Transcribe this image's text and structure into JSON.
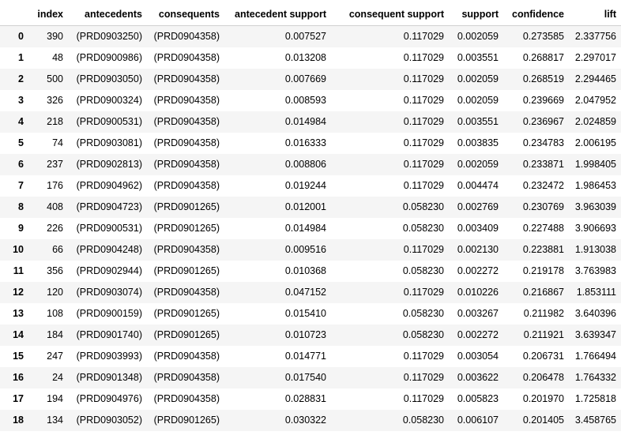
{
  "table": {
    "columns": [
      "",
      "index",
      "antecedents",
      "consequents",
      "antecedent support",
      "consequent support",
      "support",
      "confidence",
      "lift"
    ],
    "rows": [
      [
        "0",
        "390",
        "(PRD0903250)",
        "(PRD0904358)",
        "0.007527",
        "0.117029",
        "0.002059",
        "0.273585",
        "2.337756"
      ],
      [
        "1",
        "48",
        "(PRD0900986)",
        "(PRD0904358)",
        "0.013208",
        "0.117029",
        "0.003551",
        "0.268817",
        "2.297017"
      ],
      [
        "2",
        "500",
        "(PRD0903050)",
        "(PRD0904358)",
        "0.007669",
        "0.117029",
        "0.002059",
        "0.268519",
        "2.294465"
      ],
      [
        "3",
        "326",
        "(PRD0900324)",
        "(PRD0904358)",
        "0.008593",
        "0.117029",
        "0.002059",
        "0.239669",
        "2.047952"
      ],
      [
        "4",
        "218",
        "(PRD0900531)",
        "(PRD0904358)",
        "0.014984",
        "0.117029",
        "0.003551",
        "0.236967",
        "2.024859"
      ],
      [
        "5",
        "74",
        "(PRD0903081)",
        "(PRD0904358)",
        "0.016333",
        "0.117029",
        "0.003835",
        "0.234783",
        "2.006195"
      ],
      [
        "6",
        "237",
        "(PRD0902813)",
        "(PRD0904358)",
        "0.008806",
        "0.117029",
        "0.002059",
        "0.233871",
        "1.998405"
      ],
      [
        "7",
        "176",
        "(PRD0904962)",
        "(PRD0904358)",
        "0.019244",
        "0.117029",
        "0.004474",
        "0.232472",
        "1.986453"
      ],
      [
        "8",
        "408",
        "(PRD0904723)",
        "(PRD0901265)",
        "0.012001",
        "0.058230",
        "0.002769",
        "0.230769",
        "3.963039"
      ],
      [
        "9",
        "226",
        "(PRD0900531)",
        "(PRD0901265)",
        "0.014984",
        "0.058230",
        "0.003409",
        "0.227488",
        "3.906693"
      ],
      [
        "10",
        "66",
        "(PRD0904248)",
        "(PRD0904358)",
        "0.009516",
        "0.117029",
        "0.002130",
        "0.223881",
        "1.913038"
      ],
      [
        "11",
        "356",
        "(PRD0902944)",
        "(PRD0901265)",
        "0.010368",
        "0.058230",
        "0.002272",
        "0.219178",
        "3.763983"
      ],
      [
        "12",
        "120",
        "(PRD0903074)",
        "(PRD0904358)",
        "0.047152",
        "0.117029",
        "0.010226",
        "0.216867",
        "1.853111"
      ],
      [
        "13",
        "108",
        "(PRD0900159)",
        "(PRD0901265)",
        "0.015410",
        "0.058230",
        "0.003267",
        "0.211982",
        "3.640396"
      ],
      [
        "14",
        "184",
        "(PRD0901740)",
        "(PRD0901265)",
        "0.010723",
        "0.058230",
        "0.002272",
        "0.211921",
        "3.639347"
      ],
      [
        "15",
        "247",
        "(PRD0903993)",
        "(PRD0904358)",
        "0.014771",
        "0.117029",
        "0.003054",
        "0.206731",
        "1.766494"
      ],
      [
        "16",
        "24",
        "(PRD0901348)",
        "(PRD0904358)",
        "0.017540",
        "0.117029",
        "0.003622",
        "0.206478",
        "1.764332"
      ],
      [
        "17",
        "194",
        "(PRD0904976)",
        "(PRD0904358)",
        "0.028831",
        "0.117029",
        "0.005823",
        "0.201970",
        "1.725818"
      ],
      [
        "18",
        "134",
        "(PRD0903052)",
        "(PRD0901265)",
        "0.030322",
        "0.058230",
        "0.006107",
        "0.201405",
        "3.458765"
      ]
    ]
  }
}
